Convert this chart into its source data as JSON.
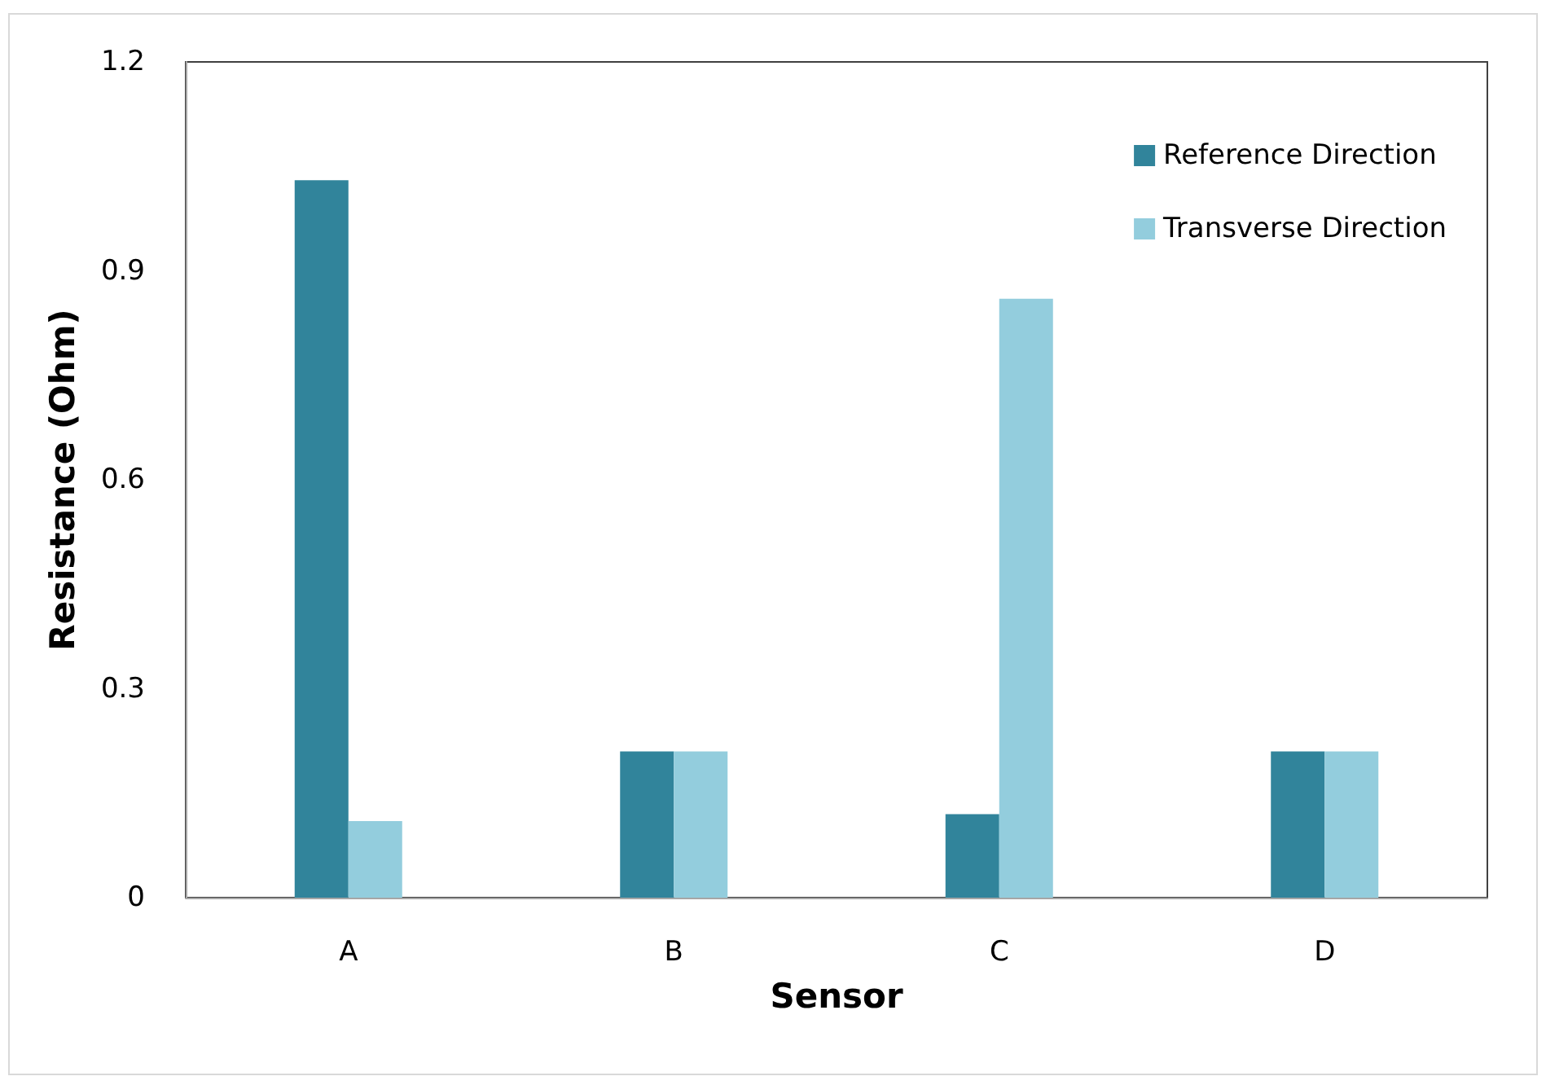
{
  "chart_data": {
    "type": "bar",
    "xlabel": "Sensor",
    "ylabel": "Resistance (Ohm)",
    "categories": [
      "A",
      "B",
      "C",
      "D"
    ],
    "series": [
      {
        "name": "Reference Direction",
        "color": "#31849b",
        "values": [
          1.03,
          0.21,
          0.12,
          0.21
        ]
      },
      {
        "name": "Transverse Direction",
        "color": "#93cddd",
        "values": [
          0.11,
          0.21,
          0.86,
          0.21
        ]
      }
    ],
    "ylim": [
      0,
      1.2
    ],
    "yticks": [
      0,
      0.3,
      0.6,
      0.9,
      1.2
    ],
    "grid": false,
    "legend": "top right"
  }
}
